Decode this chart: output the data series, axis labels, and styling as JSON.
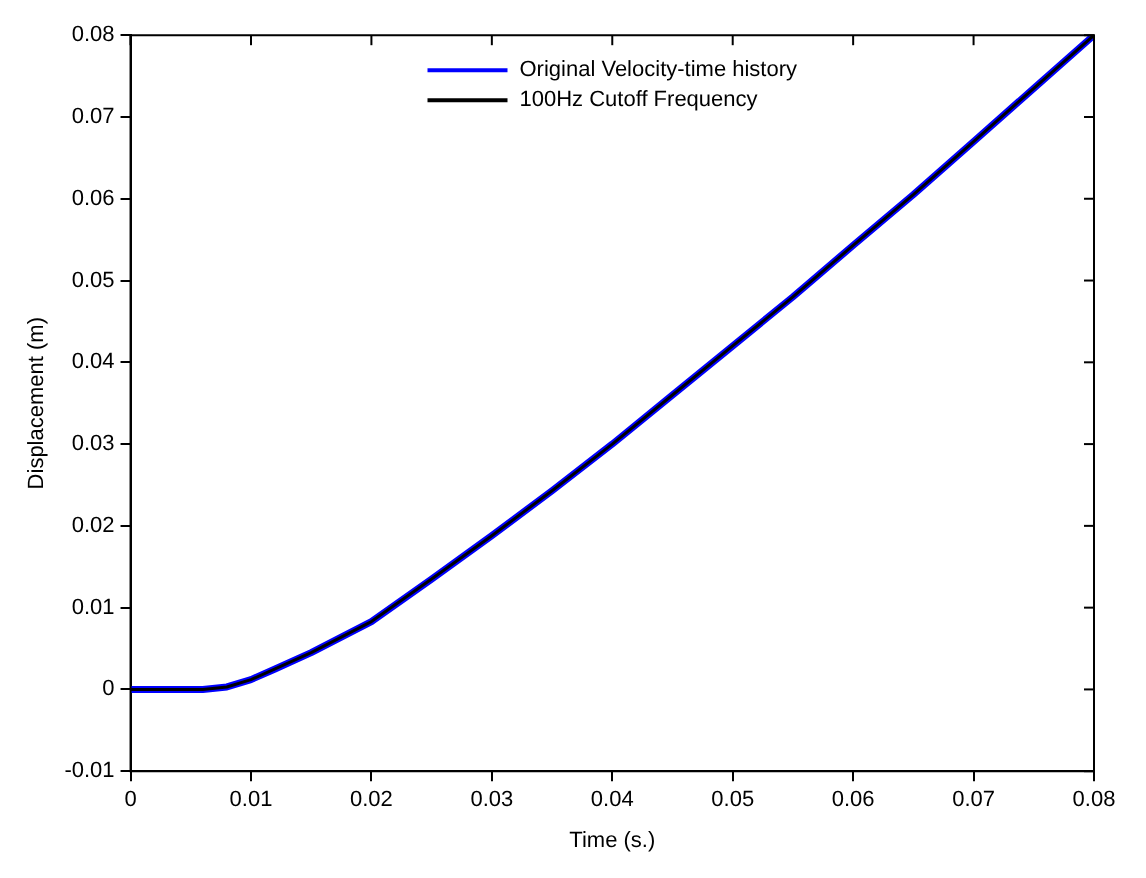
{
  "chart_data": {
    "type": "line",
    "xlabel": "Time (s.)",
    "ylabel": "Displacement (m)",
    "xlim": [
      0,
      0.08
    ],
    "xticks": [
      0,
      0.01,
      0.02,
      0.03,
      0.04,
      0.05,
      0.06,
      0.07,
      0.08
    ],
    "ylim": [
      -0.01,
      0.08
    ],
    "yticks": [
      -0.01,
      0,
      0.01,
      0.02,
      0.03,
      0.04,
      0.05,
      0.06,
      0.07,
      0.08
    ],
    "x": [
      0,
      0.006,
      0.008,
      0.01,
      0.012,
      0.015,
      0.02,
      0.025,
      0.03,
      0.035,
      0.04,
      0.045,
      0.05,
      0.055,
      0.06,
      0.065,
      0.07,
      0.075,
      0.08
    ],
    "series": [
      {
        "name": "Original Velocity-time history",
        "color": "#0000ff",
        "values": [
          0,
          0,
          0.0003,
          0.0012,
          0.0025,
          0.0045,
          0.0083,
          0.0135,
          0.0188,
          0.0243,
          0.03,
          0.036,
          0.042,
          0.048,
          0.0543,
          0.0605,
          0.067,
          0.0735,
          0.08
        ]
      },
      {
        "name": "100Hz Cutoff Frequency",
        "color": "#000000",
        "values": [
          0,
          0,
          0.0003,
          0.0012,
          0.0025,
          0.0045,
          0.0083,
          0.0135,
          0.0188,
          0.0243,
          0.03,
          0.036,
          0.042,
          0.048,
          0.0543,
          0.0605,
          0.067,
          0.0735,
          0.08
        ]
      }
    ],
    "grid": false,
    "legend": "top",
    "marker": "none",
    "line_style": "solid"
  }
}
